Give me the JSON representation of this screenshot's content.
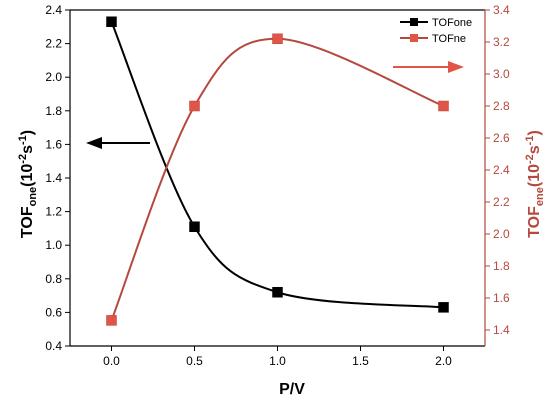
{
  "chart_data": {
    "type": "line",
    "xlabel": "P/V",
    "x_ticks": [
      "0.0",
      "0.5",
      "1.0",
      "1.5",
      "2.0"
    ],
    "xlim": [
      -0.25,
      2.25
    ],
    "y_left": {
      "label_main": "TOF",
      "label_sub": "one",
      "label_unit": "(10",
      "label_exp1": "-2",
      "label_unit2": "s",
      "label_exp2": "-1",
      "label_close": ")",
      "ylim": [
        0.4,
        2.4
      ],
      "ticks": [
        "0.4",
        "0.6",
        "0.8",
        "1.0",
        "1.2",
        "1.4",
        "1.6",
        "1.8",
        "2.0",
        "2.2",
        "2.4"
      ],
      "color": "#000000"
    },
    "y_right": {
      "label_main": "TOF",
      "label_sub": "ene",
      "label_unit": "(10",
      "label_exp1": "-2",
      "label_unit2": "s",
      "label_exp2": "-1",
      "label_close": ")",
      "ylim": [
        1.3,
        3.4
      ],
      "ticks": [
        "1.4",
        "1.6",
        "1.8",
        "2.0",
        "2.2",
        "2.4",
        "2.6",
        "2.8",
        "3.0",
        "3.2",
        "3.4"
      ],
      "color": "#b5493f"
    },
    "series": [
      {
        "name": "TOFone",
        "axis": "left",
        "color": "#000000",
        "marker_color": "#000000",
        "x": [
          0.0,
          0.5,
          1.0,
          2.0
        ],
        "y": [
          2.33,
          1.11,
          0.72,
          0.63
        ]
      },
      {
        "name": "TOFne",
        "axis": "right",
        "color": "#b5493f",
        "marker_color": "#e05545",
        "x": [
          0.0,
          0.5,
          1.0,
          2.0
        ],
        "y": [
          1.46,
          2.8,
          3.22,
          2.8
        ]
      }
    ],
    "legend_position": "top-right",
    "grid": false
  }
}
